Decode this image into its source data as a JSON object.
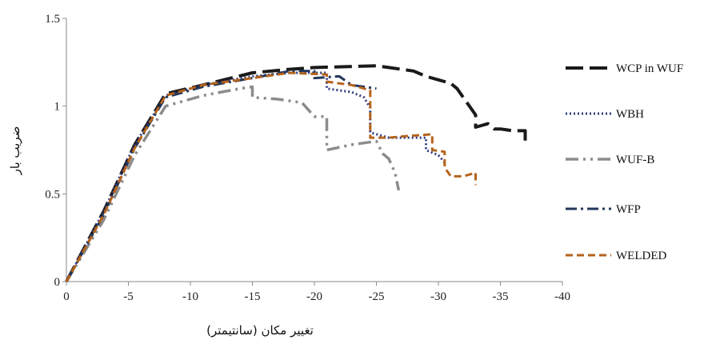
{
  "chart_data": {
    "type": "line",
    "title": "",
    "xlabel": "تغییر مکان (سانتیمتر)",
    "ylabel": "ضریب بار",
    "xlim": [
      0,
      -40
    ],
    "ylim": [
      0,
      1.5
    ],
    "x_ticks": [
      0,
      -5,
      -10,
      -15,
      -20,
      -25,
      -30,
      -35,
      -40
    ],
    "y_ticks": [
      0,
      0.5,
      1,
      1.5
    ],
    "x_tick_labels": [
      "0",
      "-5",
      "-10",
      "-15",
      "-20",
      "-25",
      "-30",
      "-35",
      "-40"
    ],
    "y_tick_labels": [
      "0",
      "0.5",
      "1",
      "1.5"
    ],
    "grid": false,
    "legend_position": "right",
    "series": [
      {
        "name": "WCP in WUF",
        "color": "#1a1a1a",
        "dash": "long-dash",
        "points": [
          [
            0,
            0
          ],
          [
            -3,
            0.4
          ],
          [
            -5.5,
            0.78
          ],
          [
            -8,
            1.07
          ],
          [
            -11,
            1.12
          ],
          [
            -15,
            1.19
          ],
          [
            -18,
            1.21
          ],
          [
            -20,
            1.22
          ],
          [
            -25,
            1.23
          ],
          [
            -26,
            1.22
          ],
          [
            -28,
            1.2
          ],
          [
            -29,
            1.17
          ],
          [
            -30,
            1.15
          ],
          [
            -31,
            1.13
          ],
          [
            -31.5,
            1.1
          ],
          [
            -32,
            1.05
          ],
          [
            -32.5,
            1.0
          ],
          [
            -33,
            0.95
          ],
          [
            -33,
            0.88
          ],
          [
            -34,
            0.9
          ],
          [
            -34.5,
            0.87
          ],
          [
            -35,
            0.87
          ],
          [
            -36,
            0.86
          ],
          [
            -37,
            0.86
          ],
          [
            -37,
            0.8
          ]
        ]
      },
      {
        "name": "WBH",
        "color": "#2e3a80",
        "dash": "dotted",
        "points": [
          [
            0,
            0
          ],
          [
            -3,
            0.4
          ],
          [
            -5.5,
            0.78
          ],
          [
            -8,
            1.06
          ],
          [
            -11,
            1.12
          ],
          [
            -15,
            1.17
          ],
          [
            -18,
            1.19
          ],
          [
            -21,
            1.19
          ],
          [
            -21,
            1.1
          ],
          [
            -23,
            1.08
          ],
          [
            -24,
            1.05
          ],
          [
            -24.5,
            0.99
          ],
          [
            -24.5,
            0.85
          ],
          [
            -26,
            0.82
          ],
          [
            -29,
            0.82
          ],
          [
            -29,
            0.75
          ],
          [
            -30,
            0.72
          ],
          [
            -30.5,
            0.68
          ]
        ]
      },
      {
        "name": "WUF-B",
        "color": "#8c8c8c",
        "dash": "dash-dot-dot",
        "points": [
          [
            0,
            0
          ],
          [
            -3,
            0.35
          ],
          [
            -5.5,
            0.72
          ],
          [
            -8,
            1.0
          ],
          [
            -11,
            1.06
          ],
          [
            -14,
            1.1
          ],
          [
            -15,
            1.11
          ],
          [
            -15,
            1.05
          ],
          [
            -17,
            1.04
          ],
          [
            -19,
            1.02
          ],
          [
            -20,
            0.94
          ],
          [
            -21,
            0.94
          ],
          [
            -21,
            0.75
          ],
          [
            -23,
            0.78
          ],
          [
            -25,
            0.8
          ],
          [
            -25.5,
            0.73
          ],
          [
            -26,
            0.7
          ],
          [
            -26.5,
            0.62
          ],
          [
            -26.8,
            0.52
          ]
        ]
      },
      {
        "name": "WFP",
        "color": "#22375a",
        "dash": "dash-dot",
        "points": [
          [
            0,
            0
          ],
          [
            -3,
            0.38
          ],
          [
            -5.5,
            0.76
          ],
          [
            -8,
            1.05
          ],
          [
            -11,
            1.11
          ],
          [
            -15,
            1.16
          ],
          [
            -18,
            1.2
          ],
          [
            -20,
            1.2
          ],
          [
            -20,
            1.16
          ],
          [
            -22,
            1.17
          ],
          [
            -23,
            1.12
          ],
          [
            -25,
            1.1
          ]
        ]
      },
      {
        "name": "WELDED",
        "color": "#b5631c",
        "dash": "short-dash",
        "points": [
          [
            0,
            0
          ],
          [
            -3,
            0.38
          ],
          [
            -5.5,
            0.76
          ],
          [
            -8,
            1.06
          ],
          [
            -11,
            1.12
          ],
          [
            -15,
            1.16
          ],
          [
            -18,
            1.19
          ],
          [
            -21,
            1.18
          ],
          [
            -21,
            1.14
          ],
          [
            -22,
            1.13
          ],
          [
            -23,
            1.12
          ],
          [
            -24,
            1.1
          ],
          [
            -24.5,
            1.09
          ],
          [
            -24.5,
            0.82
          ],
          [
            -26,
            0.82
          ],
          [
            -27.5,
            0.83
          ],
          [
            -29.5,
            0.84
          ],
          [
            -29.5,
            0.75
          ],
          [
            -30.5,
            0.74
          ],
          [
            -30.5,
            0.65
          ],
          [
            -31,
            0.6
          ],
          [
            -32,
            0.6
          ],
          [
            -33,
            0.62
          ],
          [
            -33,
            0.55
          ]
        ]
      }
    ]
  }
}
